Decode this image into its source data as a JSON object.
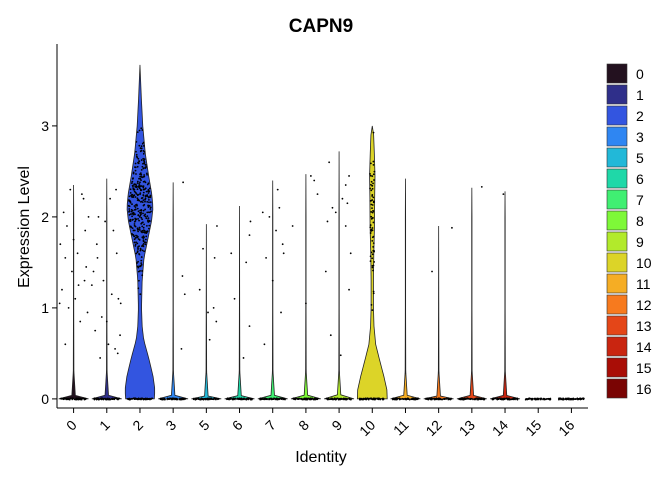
{
  "chart_data": {
    "type": "violin",
    "title": "CAPN9",
    "xlabel": "Identity",
    "ylabel": "Expression Level",
    "ylim": [
      -0.1,
      3.9
    ],
    "yticks": [
      0,
      1,
      2,
      3
    ],
    "categories": [
      "0",
      "1",
      "2",
      "3",
      "5",
      "6",
      "7",
      "8",
      "9",
      "10",
      "11",
      "12",
      "13",
      "14",
      "15",
      "16"
    ],
    "legend": {
      "position": "right",
      "entries": [
        "0",
        "1",
        "2",
        "3",
        "5",
        "6",
        "7",
        "8",
        "9",
        "10",
        "11",
        "12",
        "13",
        "14",
        "15",
        "16"
      ]
    },
    "colors": [
      "#23111f",
      "#2f2f8a",
      "#3355e0",
      "#2f86f2",
      "#22b8d8",
      "#1fd8a8",
      "#40ef72",
      "#7ef838",
      "#b2ea2b",
      "#dcd428",
      "#f5ad24",
      "#f77a1e",
      "#e44618",
      "#c92510",
      "#a90d06",
      "#7a0403"
    ],
    "series": [
      {
        "name": "0",
        "max": 2.35,
        "density": [
          [
            0,
            1
          ],
          [
            0.03,
            0.12
          ],
          [
            0.3,
            0.02
          ],
          [
            1,
            0.01
          ],
          [
            2,
            0.01
          ],
          [
            2.35,
            0
          ]
        ],
        "points": [
          [
            0.12,
            1.6
          ],
          [
            -0.25,
            1.55
          ],
          [
            0.3,
            2.2
          ],
          [
            -0.1,
            2.3
          ],
          [
            0.45,
            2.0
          ],
          [
            -0.35,
            1.2
          ],
          [
            0.2,
            0.85
          ],
          [
            0.38,
            1.45
          ],
          [
            -0.2,
            1.9
          ],
          [
            0.05,
            1.1
          ],
          [
            -0.4,
            1.7
          ],
          [
            0.33,
            1.3
          ],
          [
            -0.15,
            1.0
          ],
          [
            0.25,
            2.25
          ],
          [
            -0.3,
            2.05
          ],
          [
            0.42,
            0.95
          ],
          [
            0.0,
            1.75
          ],
          [
            -0.05,
            1.4
          ],
          [
            0.35,
            1.85
          ],
          [
            -0.42,
            1.05
          ],
          [
            0.15,
            1.25
          ],
          [
            -0.25,
            0.6
          ]
        ]
      },
      {
        "name": "1",
        "max": 2.42,
        "density": [
          [
            0,
            1
          ],
          [
            0.03,
            0.12
          ],
          [
            0.3,
            0.02
          ],
          [
            1,
            0.01
          ],
          [
            2,
            0.01
          ],
          [
            2.42,
            0
          ]
        ],
        "points": [
          [
            0.1,
            2.2
          ],
          [
            -0.3,
            1.7
          ],
          [
            0.35,
            1.1
          ],
          [
            -0.15,
            0.9
          ],
          [
            0.25,
            0.55
          ],
          [
            -0.4,
            1.4
          ],
          [
            0.2,
            1.85
          ],
          [
            -0.1,
            1.3
          ],
          [
            0.4,
            0.7
          ],
          [
            -0.25,
            2.0
          ],
          [
            0.05,
            0.6
          ],
          [
            0.3,
            1.6
          ],
          [
            -0.35,
            0.75
          ],
          [
            0.15,
            1.15
          ],
          [
            -0.05,
            1.95
          ],
          [
            0.42,
            1.05
          ],
          [
            -0.2,
            0.45
          ],
          [
            0.28,
            2.3
          ],
          [
            -0.45,
            1.25
          ],
          [
            0.0,
            0.85
          ],
          [
            0.33,
            0.5
          ],
          [
            -0.28,
            1.55
          ]
        ]
      },
      {
        "name": "2",
        "max": 3.67,
        "density": [
          [
            0,
            0.46
          ],
          [
            0.1,
            0.48
          ],
          [
            0.25,
            0.42
          ],
          [
            0.45,
            0.28
          ],
          [
            0.65,
            0.12
          ],
          [
            0.8,
            0.07
          ],
          [
            1.0,
            0.05
          ],
          [
            1.3,
            0.07
          ],
          [
            1.55,
            0.13
          ],
          [
            1.75,
            0.25
          ],
          [
            1.95,
            0.37
          ],
          [
            2.1,
            0.42
          ],
          [
            2.25,
            0.38
          ],
          [
            2.45,
            0.28
          ],
          [
            2.7,
            0.17
          ],
          [
            3.0,
            0.09
          ],
          [
            3.3,
            0.045
          ],
          [
            3.67,
            0
          ]
        ],
        "gen": {
          "n": 360,
          "mean": 2.1,
          "sd": 0.45,
          "spread": 0.38,
          "seed": 7
        }
      },
      {
        "name": "3",
        "max": 2.38,
        "density": [
          [
            0,
            1
          ],
          [
            0.03,
            0.12
          ],
          [
            0.3,
            0.02
          ],
          [
            1,
            0.01
          ],
          [
            2,
            0.01
          ],
          [
            2.38,
            0
          ]
        ],
        "points": [
          [
            0.28,
            1.35
          ],
          [
            0.35,
            1.15
          ],
          [
            0.25,
            0.55
          ],
          [
            0.3,
            2.38
          ]
        ]
      },
      {
        "name": "5",
        "max": 1.92,
        "density": [
          [
            0,
            1
          ],
          [
            0.03,
            0.12
          ],
          [
            0.3,
            0.02
          ],
          [
            1,
            0.01
          ],
          [
            1.92,
            0
          ]
        ],
        "points": [
          [
            0.25,
            1.55
          ],
          [
            -0.2,
            1.2
          ],
          [
            0.1,
            0.65
          ],
          [
            0.32,
            1.9
          ],
          [
            0.05,
            0.95
          ],
          [
            -0.1,
            1.65
          ],
          [
            0.22,
            1.0
          ],
          [
            0.3,
            0.85
          ]
        ]
      },
      {
        "name": "6",
        "max": 2.12,
        "density": [
          [
            0,
            1
          ],
          [
            0.03,
            0.12
          ],
          [
            0.3,
            0.02
          ],
          [
            1,
            0.01
          ],
          [
            2.12,
            0
          ]
        ],
        "points": [
          [
            -0.15,
            1.1
          ],
          [
            0.2,
            1.5
          ],
          [
            0.3,
            1.8
          ],
          [
            0.12,
            0.45
          ],
          [
            -0.25,
            1.6
          ],
          [
            0.3,
            0.8
          ],
          [
            0.33,
            1.95
          ]
        ]
      },
      {
        "name": "7",
        "max": 2.4,
        "density": [
          [
            0,
            1
          ],
          [
            0.03,
            0.12
          ],
          [
            0.3,
            0.02
          ],
          [
            1,
            0.01
          ],
          [
            2,
            0.01
          ],
          [
            2.4,
            0
          ]
        ],
        "points": [
          [
            0.15,
            2.3
          ],
          [
            -0.25,
            0.6
          ],
          [
            0.3,
            1.7
          ],
          [
            -0.1,
            2.0
          ],
          [
            0.2,
            2.1
          ],
          [
            0.0,
            1.3
          ],
          [
            -0.3,
            2.05
          ],
          [
            0.25,
            0.95
          ],
          [
            0.1,
            1.85
          ],
          [
            -0.2,
            1.55
          ],
          [
            0.33,
            1.6
          ]
        ]
      },
      {
        "name": "8",
        "max": 2.47,
        "density": [
          [
            0,
            1
          ],
          [
            0.03,
            0.12
          ],
          [
            0.3,
            0.02
          ],
          [
            1,
            0.01
          ],
          [
            2,
            0.01
          ],
          [
            2.47,
            0
          ]
        ],
        "points": [
          [
            -0.4,
            1.9
          ],
          [
            0.25,
            2.4
          ],
          [
            0.35,
            2.25
          ],
          [
            0.15,
            2.45
          ],
          [
            0.0,
            1.05
          ]
        ]
      },
      {
        "name": "9",
        "max": 2.72,
        "density": [
          [
            0,
            1
          ],
          [
            0.03,
            0.12
          ],
          [
            0.3,
            0.02
          ],
          [
            1,
            0.01
          ],
          [
            2,
            0.01
          ],
          [
            2.72,
            0
          ]
        ],
        "points": [
          [
            -0.3,
            2.6
          ],
          [
            0.2,
            2.35
          ],
          [
            -0.2,
            2.1
          ],
          [
            0.3,
            1.2
          ],
          [
            -0.35,
            1.95
          ],
          [
            0.1,
            2.2
          ],
          [
            -0.25,
            0.7
          ],
          [
            0.25,
            2.15
          ],
          [
            0.05,
            0.48
          ],
          [
            0.35,
            1.6
          ],
          [
            -0.1,
            2.05
          ],
          [
            0.2,
            1.9
          ],
          [
            0.3,
            2.45
          ],
          [
            -0.4,
            1.4
          ]
        ]
      },
      {
        "name": "10",
        "max": 3.0,
        "density": [
          [
            0,
            0.44
          ],
          [
            0.1,
            0.43
          ],
          [
            0.25,
            0.34
          ],
          [
            0.45,
            0.2
          ],
          [
            0.6,
            0.1
          ],
          [
            0.8,
            0.05
          ],
          [
            1.0,
            0.035
          ],
          [
            1.3,
            0.035
          ],
          [
            1.6,
            0.045
          ],
          [
            1.9,
            0.065
          ],
          [
            2.2,
            0.07
          ],
          [
            2.45,
            0.08
          ],
          [
            2.7,
            0.06
          ],
          [
            2.9,
            0.04
          ],
          [
            3.0,
            0
          ]
        ],
        "gen": {
          "n": 70,
          "mean": 1.95,
          "sd": 0.55,
          "spread": 0.34,
          "seed": 11
        }
      },
      {
        "name": "11",
        "max": 2.42,
        "density": [
          [
            0,
            1
          ],
          [
            0.03,
            0.12
          ],
          [
            0.3,
            0.02
          ],
          [
            1,
            0.01
          ],
          [
            2,
            0.01
          ],
          [
            2.42,
            0
          ]
        ],
        "points": []
      },
      {
        "name": "12",
        "max": 1.9,
        "density": [
          [
            0,
            1
          ],
          [
            0.03,
            0.12
          ],
          [
            0.3,
            0.02
          ],
          [
            1,
            0.01
          ],
          [
            1.9,
            0
          ]
        ],
        "points": [
          [
            -0.2,
            1.4
          ],
          [
            0.4,
            1.88
          ]
        ]
      },
      {
        "name": "13",
        "max": 2.32,
        "density": [
          [
            0,
            1
          ],
          [
            0.03,
            0.12
          ],
          [
            0.3,
            0.02
          ],
          [
            1,
            0.01
          ],
          [
            2,
            0.01
          ],
          [
            2.32,
            0
          ]
        ],
        "points": [
          [
            0.3,
            2.33
          ]
        ]
      },
      {
        "name": "14",
        "max": 2.28,
        "density": [
          [
            0,
            1
          ],
          [
            0.03,
            0.12
          ],
          [
            0.3,
            0.02
          ],
          [
            1,
            0.01
          ],
          [
            2,
            0.01
          ],
          [
            2.28,
            0
          ]
        ],
        "points": [
          [
            -0.05,
            2.25
          ]
        ]
      },
      {
        "name": "15",
        "max": 0,
        "density": [],
        "points": []
      },
      {
        "name": "16",
        "max": 0,
        "density": [],
        "points": []
      }
    ]
  }
}
